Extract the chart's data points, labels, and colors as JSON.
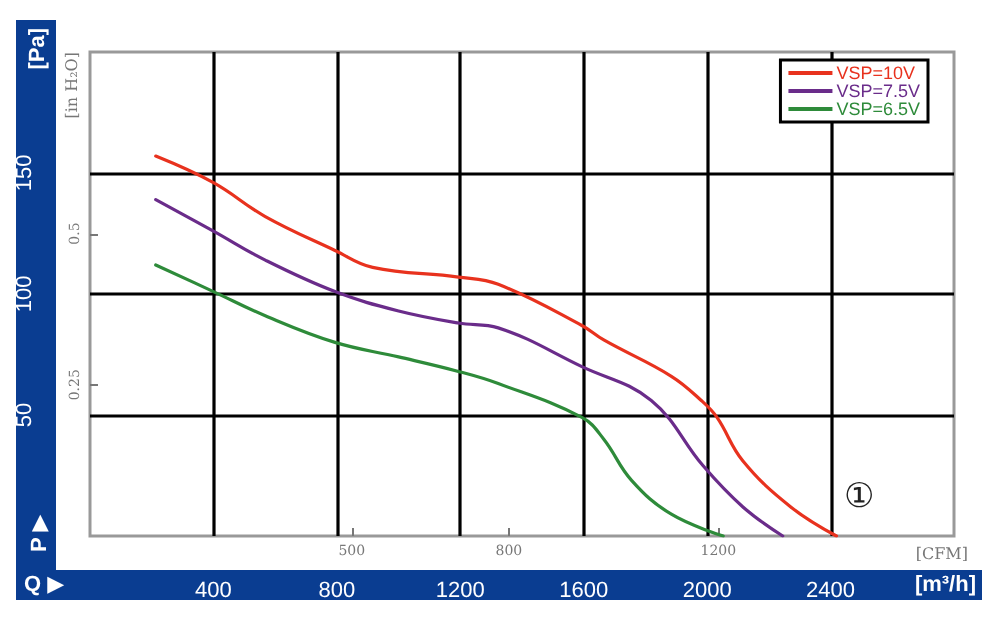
{
  "chart_data": {
    "type": "line",
    "xlabel": "[m³/h]",
    "ylabel": "[Pa]",
    "y2label": "[in H₂O]",
    "x2label": "[CFM]",
    "xlim": [
      0,
      2800
    ],
    "xticks": [
      400,
      800,
      1200,
      1600,
      2000,
      2400
    ],
    "ylim": [
      0,
      200
    ],
    "yticks": [
      50,
      100,
      150
    ],
    "y2lim": [
      0,
      0.8
    ],
    "y2ticks": [
      0.25,
      0.5
    ],
    "x2lim": [
      0,
      1650
    ],
    "x2ticks": [
      500,
      800,
      1200
    ],
    "grid": true,
    "legend": "top right",
    "marker": "none",
    "line_style": "solid",
    "annotations": [
      "①",
      "P ▶",
      "Q ▶"
    ],
    "series": [
      {
        "name": "VSP=10V",
        "color": "#e8321e",
        "x": [
          213,
          400,
          568,
          794,
          916,
          1194,
          1323,
          1594,
          1665,
          1884,
          1981,
          2032,
          2116,
          2271,
          2419
        ],
        "values": [
          157,
          146,
          132,
          118,
          111,
          107,
          104,
          87,
          81,
          66,
          56,
          49,
          31,
          12,
          0
        ]
      },
      {
        "name": "VSP=7.5V",
        "color": "#6a2c8a",
        "x": [
          213,
          400,
          568,
          794,
          1000,
          1194,
          1323,
          1594,
          1819,
          1987,
          2116,
          2245
        ],
        "values": [
          139,
          126,
          114,
          101,
          93,
          88,
          86,
          70,
          56,
          29,
          12,
          0
        ]
      },
      {
        "name": "VSP=6.5V",
        "color": "#2e8b3a",
        "x": [
          213,
          400,
          568,
          794,
          1000,
          1194,
          1323,
          1594,
          1665,
          1755,
          1884,
          2052
        ],
        "values": [
          112,
          101,
          91,
          80,
          74,
          68,
          63,
          49,
          40,
          23,
          9,
          0
        ]
      }
    ]
  }
}
